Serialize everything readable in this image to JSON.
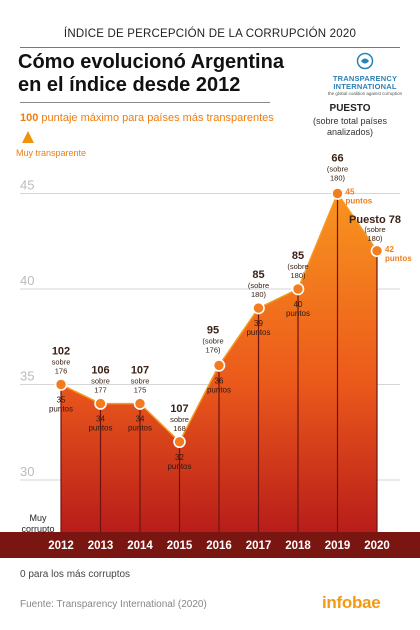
{
  "header": {
    "supertitle": "ÍNDICE DE PERCEPCIÓN DE LA CORRUPCIÓN 2020",
    "title_line1": "Cómo evolucionó Argentina",
    "title_line2": "en el índice desde 2012",
    "logo_name_line1": "TRANSPARENCY",
    "logo_name_line2": "INTERNATIONAL",
    "logo_tagline": "the global coalition against corruption"
  },
  "scale": {
    "top_value": "100",
    "top_text": "puntaje máximo para países más transparentes",
    "top_label": "Muy transparente",
    "bottom_label_line1": "Muy",
    "bottom_label_line2": "corrupto",
    "bottom_text": "0 para los más corruptos"
  },
  "rank_legend": {
    "title": "PUESTO",
    "sub_line1": "(sobre total países",
    "sub_line2": "analizados)"
  },
  "footer": {
    "source": "Fuente: Transparency International (2020)",
    "brand": "infobae"
  },
  "colors": {
    "accent": "#ee7d10",
    "fill_top": "#f58a1f",
    "fill_bottom": "#c0241c",
    "dark_bar": "#7a1612"
  },
  "chart_data": {
    "type": "area",
    "x": [
      "2012",
      "2013",
      "2014",
      "2015",
      "2016",
      "2017",
      "2018",
      "2019",
      "2020"
    ],
    "series": [
      {
        "values": [
          35,
          34,
          34,
          32,
          36,
          39,
          40,
          45,
          42
        ]
      }
    ],
    "ylim": [
      30,
      46
    ],
    "yticks": [
      30,
      35,
      40,
      45
    ],
    "point_labels": [
      "35 puntos",
      "34 puntos",
      "34 puntos",
      "32 puntos",
      "36 puntos",
      "39 puntos",
      "40 puntos",
      "45 puntos",
      "42 puntos"
    ],
    "ranks": [
      102,
      106,
      107,
      107,
      95,
      85,
      85,
      66,
      78
    ],
    "rank_labels": [
      "102",
      "106",
      "107",
      "107",
      "95",
      "85",
      "85",
      "66",
      "Puesto 78"
    ],
    "rank_totals": [
      "(sobre 176)",
      "(sobre 177)",
      "(sobre 175)",
      "(sobre 168)",
      "(sobre 176)",
      "(sobre 180)",
      "(sobre 180)",
      "(sobre 180)",
      "(sobre 180)"
    ],
    "grid": true
  }
}
